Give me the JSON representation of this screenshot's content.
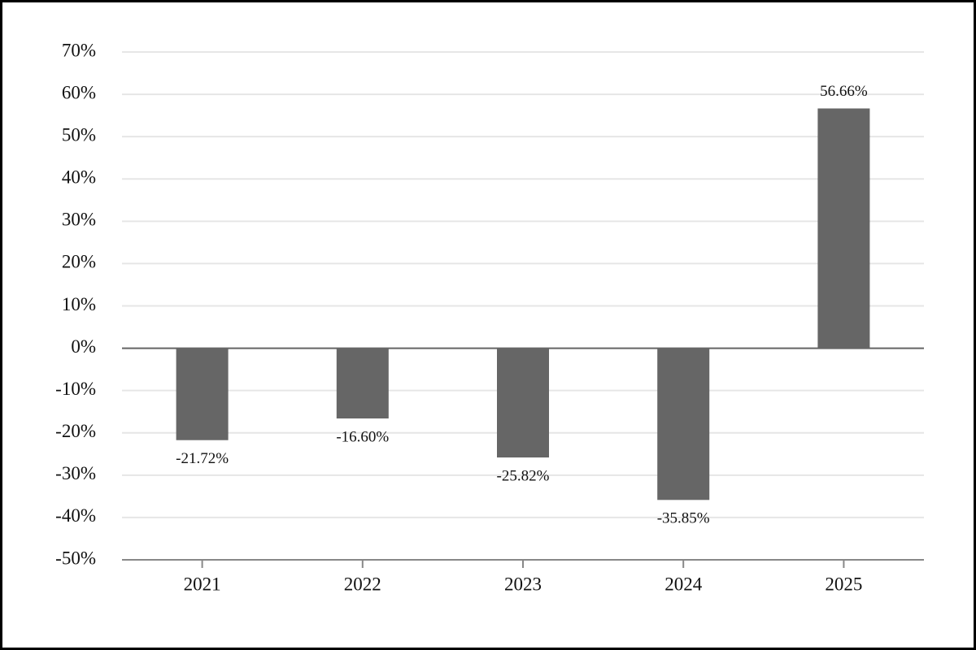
{
  "chart_data": {
    "type": "bar",
    "categories": [
      "2021",
      "2022",
      "2023",
      "2024",
      "2025"
    ],
    "values": [
      -21.72,
      -16.6,
      -25.82,
      -35.85,
      56.66
    ],
    "value_labels": [
      "-21.72%",
      "-16.60%",
      "-25.82%",
      "-35.85%",
      "56.66%"
    ],
    "color": "#666666",
    "ylim": [
      -50,
      70
    ],
    "yticks": [
      {
        "value": -50,
        "label": "-50%"
      },
      {
        "value": -40,
        "label": "-40%"
      },
      {
        "value": -30,
        "label": "-30%"
      },
      {
        "value": -20,
        "label": "-20%"
      },
      {
        "value": -10,
        "label": "-10%"
      },
      {
        "value": 0,
        "label": "0%"
      },
      {
        "value": 10,
        "label": "10%"
      },
      {
        "value": 20,
        "label": "20%"
      },
      {
        "value": 30,
        "label": "30%"
      },
      {
        "value": 40,
        "label": "40%"
      },
      {
        "value": 50,
        "label": "50%"
      },
      {
        "value": 60,
        "label": "60%"
      },
      {
        "value": 70,
        "label": "70%"
      }
    ],
    "grid": true
  }
}
